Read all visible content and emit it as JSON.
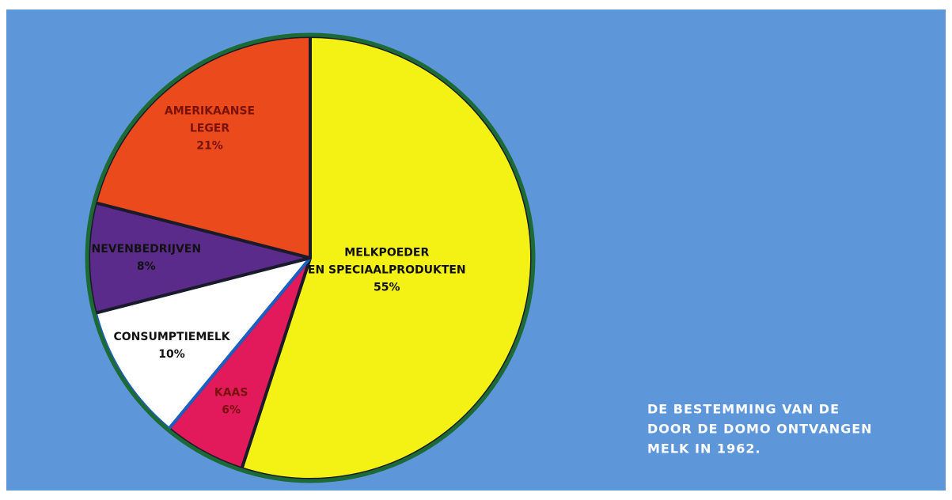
{
  "chart_data": {
    "type": "pie",
    "categories": [
      [
        "MELKPOEDER",
        "EN SPECIAALPRODUKTEN"
      ],
      [
        "KAAS"
      ],
      [
        "CONSUMPTIEMELK"
      ],
      [
        "NEVENBEDRIJVEN"
      ],
      [
        "AMERIKAANSE",
        "LEGER"
      ]
    ],
    "values": [
      55,
      6,
      10,
      8,
      21
    ],
    "value_labels": [
      "55%",
      "6%",
      "10%",
      "8%",
      "21%"
    ],
    "colors": [
      "#f4f214",
      "#e2195a",
      "#ffffff",
      "#5b2b8c",
      "#ea4a1c"
    ],
    "caption": [
      "DE BESTEMMING VAN DE",
      "DOOR DE DOMO ONTVANGEN",
      "MELK IN 1962."
    ]
  }
}
